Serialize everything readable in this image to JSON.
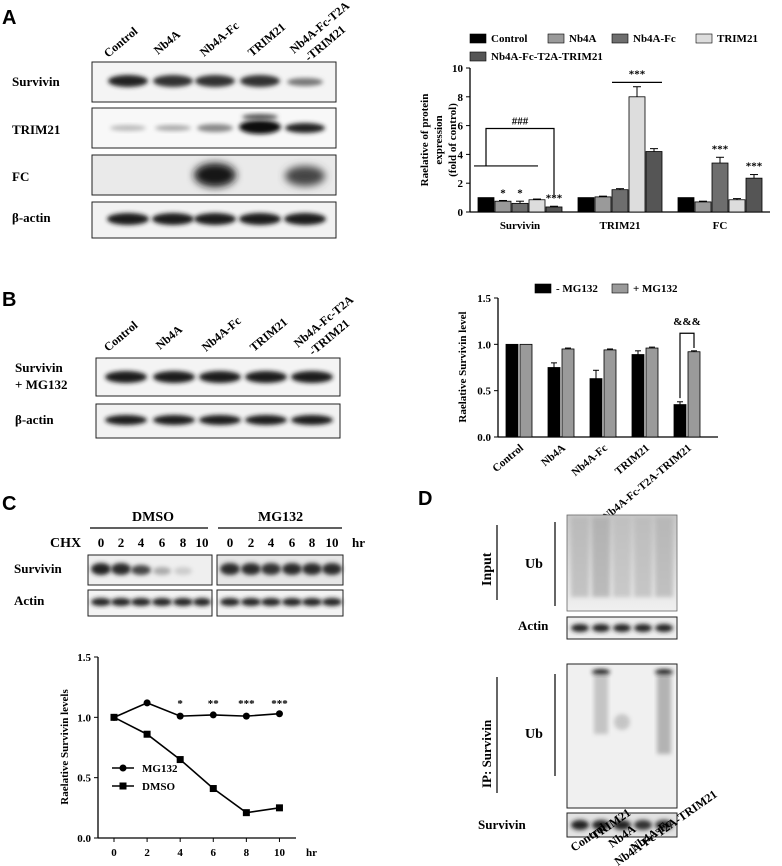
{
  "panel_labels": {
    "a": "A",
    "b": "B",
    "c": "C",
    "d": "D"
  },
  "lanes5": [
    "Control",
    "Nb4A",
    "Nb4A-Fc",
    "TRIM21",
    "Nb4A-Fc-T2A-TRIM21"
  ],
  "lane5_last_line1": "Nb4A-Fc-T2A",
  "lane5_last_line2": "-TRIM21",
  "panelA_blot_rows": [
    "Survivin",
    "TRIM21",
    "FC",
    "β-actin"
  ],
  "panelB_blot_rows": {
    "row1_line1": "Survivin",
    "row1_line2": "+ MG132",
    "row2": "β-actin"
  },
  "panelC": {
    "group1": "DMSO",
    "group2": "MG132",
    "cond_label": "CHX",
    "unit": "hr",
    "timepoints": [
      "0",
      "2",
      "4",
      "6",
      "8",
      "10"
    ],
    "rows": [
      "Survivin",
      "Actin"
    ]
  },
  "panelD": {
    "input_label": "Input",
    "ip_label": "IP: Survivin",
    "ub_label": "Ub",
    "actin_label": "Actin",
    "survivin_label": "Survivin"
  },
  "chart_data": [
    {
      "type": "bar",
      "ylabel_lines": [
        "Raelative of protein",
        "expression",
        "(fold of control)"
      ],
      "categories": [
        "Survivin",
        "TRIM21",
        "FC"
      ],
      "ylim": [
        0,
        10
      ],
      "yticks": [
        "0",
        "2",
        "4",
        "6",
        "8",
        "10"
      ],
      "legend": "top",
      "series": [
        {
          "name": "Control",
          "color": "#000000",
          "values": [
            1.0,
            1.0,
            1.0
          ],
          "err": [
            0,
            0,
            0
          ]
        },
        {
          "name": "Nb4A",
          "color": "#9a9a9a",
          "values": [
            0.75,
            1.05,
            0.7
          ],
          "err": [
            0.05,
            0.05,
            0.05
          ]
        },
        {
          "name": "Nb4A-Fc",
          "color": "#6e6e6e",
          "values": [
            0.6,
            1.55,
            3.4
          ],
          "err": [
            0.15,
            0.07,
            0.4
          ]
        },
        {
          "name": "TRIM21",
          "color": "#dddddd",
          "values": [
            0.85,
            8.0,
            0.85
          ],
          "err": [
            0.05,
            0.7,
            0.08
          ]
        },
        {
          "name": "Nb4A-Fc-T2A-TRIM21",
          "color": "#555555",
          "values": [
            0.35,
            4.2,
            2.35
          ],
          "err": [
            0.05,
            0.2,
            0.25
          ]
        }
      ],
      "annotations": [
        "*",
        "*",
        "***",
        "###",
        "***",
        "***",
        "***"
      ]
    },
    {
      "type": "bar",
      "ylabel": "Raelative Survivin level",
      "categories": [
        "Control",
        "Nb4A",
        "Nb4A-Fc",
        "TRIM21",
        "Nb4A-Fc-T2A-TRIM21"
      ],
      "ylim": [
        0,
        1.5
      ],
      "yticks": [
        "0.0",
        "0.5",
        "1.0",
        "1.5"
      ],
      "legend": "top",
      "series": [
        {
          "name": "- MG132",
          "color": "#000000",
          "values": [
            1.0,
            0.75,
            0.63,
            0.89,
            0.35
          ],
          "err": [
            0,
            0.05,
            0.09,
            0.04,
            0.03
          ]
        },
        {
          "name": "+ MG132",
          "color": "#9a9a9a",
          "values": [
            1.0,
            0.95,
            0.94,
            0.96,
            0.92
          ],
          "err": [
            0,
            0.01,
            0.01,
            0.01,
            0.01
          ]
        }
      ],
      "annotations": [
        "&&&"
      ]
    },
    {
      "type": "line",
      "ylabel": "Raelative Survivin levels",
      "xlabel": "hr",
      "x": [
        0,
        2,
        4,
        6,
        8,
        10
      ],
      "xticks": [
        "0",
        "2",
        "4",
        "6",
        "8",
        "10"
      ],
      "ylim": [
        0,
        1.5
      ],
      "yticks": [
        "0.0",
        "0.5",
        "1.0",
        "1.5"
      ],
      "legend": "bottom-left",
      "series": [
        {
          "name": "MG132",
          "marker": "circle",
          "values": [
            1.0,
            1.12,
            1.01,
            1.02,
            1.01,
            1.03
          ]
        },
        {
          "name": "DMSO",
          "marker": "square",
          "values": [
            1.0,
            0.86,
            0.65,
            0.41,
            0.21,
            0.25
          ]
        }
      ],
      "annotations": [
        "*",
        "**",
        "***",
        "***"
      ]
    }
  ]
}
